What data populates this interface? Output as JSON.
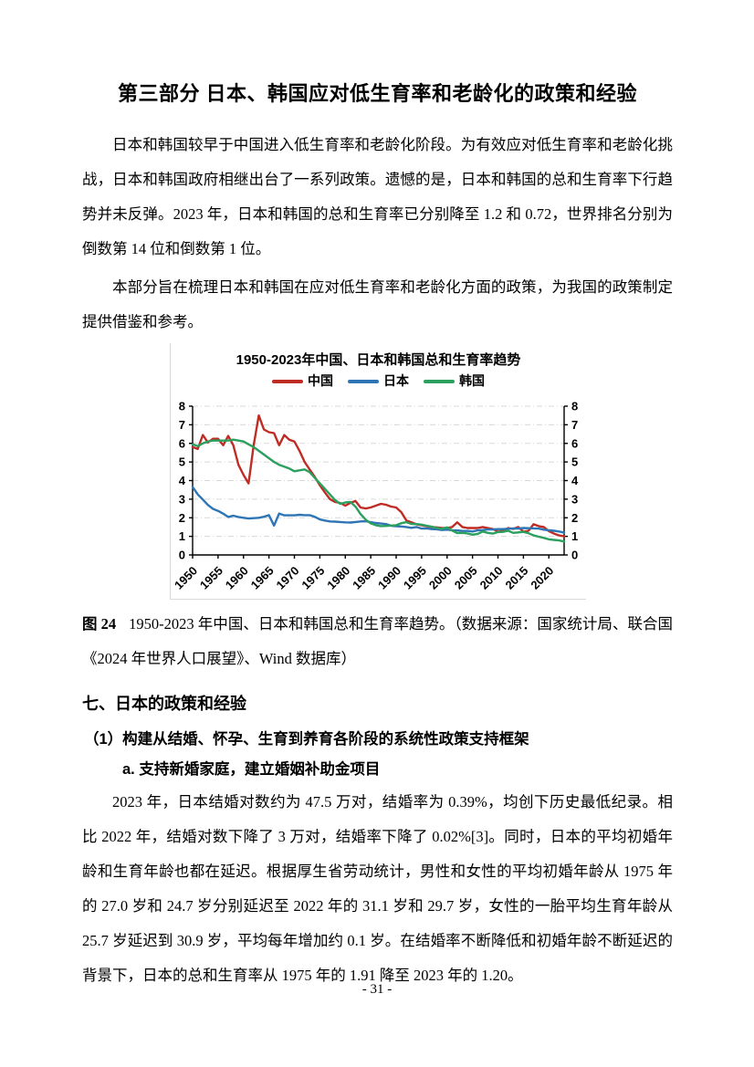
{
  "page": {
    "title": "第三部分 日本、韩国应对低生育率和老龄化的政策和经验",
    "page_number": "- 31 -"
  },
  "paragraphs": {
    "p1": "日本和韩国较早于中国进入低生育率和老龄化阶段。为有效应对低生育率和老龄化挑战，日本和韩国政府相继出台了一系列政策。遗憾的是，日本和韩国的总和生育率下行趋势并未反弹。2023 年，日本和韩国的总和生育率已分别降至 1.2 和 0.72，世界排名分别为倒数第 14 位和倒数第 1 位。",
    "p2": "本部分旨在梳理日本和韩国在应对低生育率和老龄化方面的政策，为我国的政策制定提供借鉴和参考。",
    "body": "2023 年，日本结婚对数约为 47.5 万对，结婚率为 0.39%，均创下历史最低纪录。相比 2022 年，结婚对数下降了 3 万对，结婚率下降了 0.02%[3]。同时，日本的平均初婚年龄和生育年龄也都在延迟。根据厚生省劳动统计，男性和女性的平均初婚年龄从 1975 年的 27.0 岁和 24.7 岁分别延迟至 2022 年的 31.1 岁和 29.7 岁，女性的一胎平均生育年龄从 25.7 岁延迟到 30.9 岁，平均每年增加约 0.1 岁。在结婚率不断降低和初婚年龄不断延迟的背景下，日本的总和生育率从 1975 年的 1.91 降至 2023 年的 1.20。"
  },
  "figure": {
    "label": "图 24",
    "caption": "1950-2023 年中国、日本和韩国总和生育率趋势。（数据来源：国家统计局、联合国《2024 年世界人口展望》、Wind 数据库）"
  },
  "sections": {
    "h1": "七、日本的政策和经验",
    "h2": "（1）构建从结婚、怀孕、生育到养育各阶段的系统性政策支持框架",
    "h3": "a. 支持新婚家庭，建立婚姻补助金项目"
  },
  "chart_data": {
    "type": "line",
    "title": "1950-2023年中国、日本和韩国总和生育率趋势",
    "xlabel": "",
    "ylabel": "",
    "x_range": [
      1950,
      2023
    ],
    "x_ticks": [
      1950,
      1955,
      1960,
      1965,
      1970,
      1975,
      1980,
      1985,
      1990,
      1995,
      2000,
      2005,
      2010,
      2015,
      2020
    ],
    "ylim": [
      0,
      8
    ],
    "y_ticks": [
      0,
      1,
      2,
      3,
      4,
      5,
      6,
      7,
      8
    ],
    "dual_y_axis": true,
    "grid": "horizontal-dashed",
    "legend_position": "top",
    "series": [
      {
        "name": "中国",
        "color": "#bf2c24",
        "x_start": 1950,
        "values": [
          5.8,
          5.7,
          6.45,
          6.05,
          6.25,
          6.25,
          5.9,
          6.4,
          5.9,
          4.85,
          4.3,
          3.85,
          5.9,
          7.5,
          6.75,
          6.6,
          6.55,
          5.9,
          6.45,
          6.2,
          6.1,
          5.6,
          5.0,
          4.6,
          4.2,
          3.75,
          3.35,
          3.0,
          2.85,
          2.8,
          2.65,
          2.8,
          2.9,
          2.55,
          2.5,
          2.55,
          2.65,
          2.75,
          2.7,
          2.6,
          2.55,
          2.3,
          1.85,
          1.75,
          1.65,
          1.6,
          1.55,
          1.5,
          1.48,
          1.45,
          1.45,
          1.5,
          1.75,
          1.5,
          1.45,
          1.45,
          1.45,
          1.5,
          1.45,
          1.4,
          1.25,
          1.3,
          1.45,
          1.4,
          1.5,
          1.25,
          1.3,
          1.65,
          1.55,
          1.5,
          1.28,
          1.15,
          1.05,
          1.0
        ]
      },
      {
        "name": "日本",
        "color": "#2e75b6",
        "x_start": 1950,
        "values": [
          3.65,
          3.26,
          2.98,
          2.69,
          2.48,
          2.37,
          2.22,
          2.04,
          2.11,
          2.04,
          2.0,
          1.96,
          1.98,
          2.0,
          2.05,
          2.14,
          1.58,
          2.23,
          2.13,
          2.13,
          2.13,
          2.16,
          2.14,
          2.14,
          2.05,
          1.91,
          1.85,
          1.8,
          1.79,
          1.77,
          1.75,
          1.74,
          1.77,
          1.8,
          1.81,
          1.76,
          1.72,
          1.69,
          1.66,
          1.57,
          1.54,
          1.53,
          1.5,
          1.46,
          1.5,
          1.42,
          1.43,
          1.39,
          1.38,
          1.34,
          1.36,
          1.33,
          1.32,
          1.29,
          1.29,
          1.26,
          1.32,
          1.34,
          1.37,
          1.37,
          1.39,
          1.39,
          1.41,
          1.43,
          1.42,
          1.45,
          1.44,
          1.43,
          1.42,
          1.36,
          1.33,
          1.3,
          1.26,
          1.2
        ]
      },
      {
        "name": "韩国",
        "color": "#2ba05f",
        "x_start": 1950,
        "values": [
          5.95,
          5.85,
          6.0,
          6.1,
          6.15,
          6.15,
          6.15,
          6.15,
          6.2,
          6.15,
          6.1,
          5.95,
          5.8,
          5.6,
          5.4,
          5.2,
          5.0,
          4.85,
          4.75,
          4.65,
          4.5,
          4.55,
          4.6,
          4.45,
          4.15,
          3.85,
          3.55,
          3.25,
          2.95,
          2.75,
          2.82,
          2.85,
          2.6,
          2.2,
          1.9,
          1.7,
          1.6,
          1.55,
          1.56,
          1.58,
          1.6,
          1.71,
          1.76,
          1.67,
          1.66,
          1.63,
          1.57,
          1.52,
          1.45,
          1.41,
          1.48,
          1.31,
          1.18,
          1.19,
          1.16,
          1.09,
          1.13,
          1.26,
          1.19,
          1.15,
          1.23,
          1.24,
          1.3,
          1.19,
          1.21,
          1.24,
          1.17,
          1.05,
          0.98,
          0.92,
          0.84,
          0.81,
          0.78,
          0.72
        ]
      }
    ]
  }
}
